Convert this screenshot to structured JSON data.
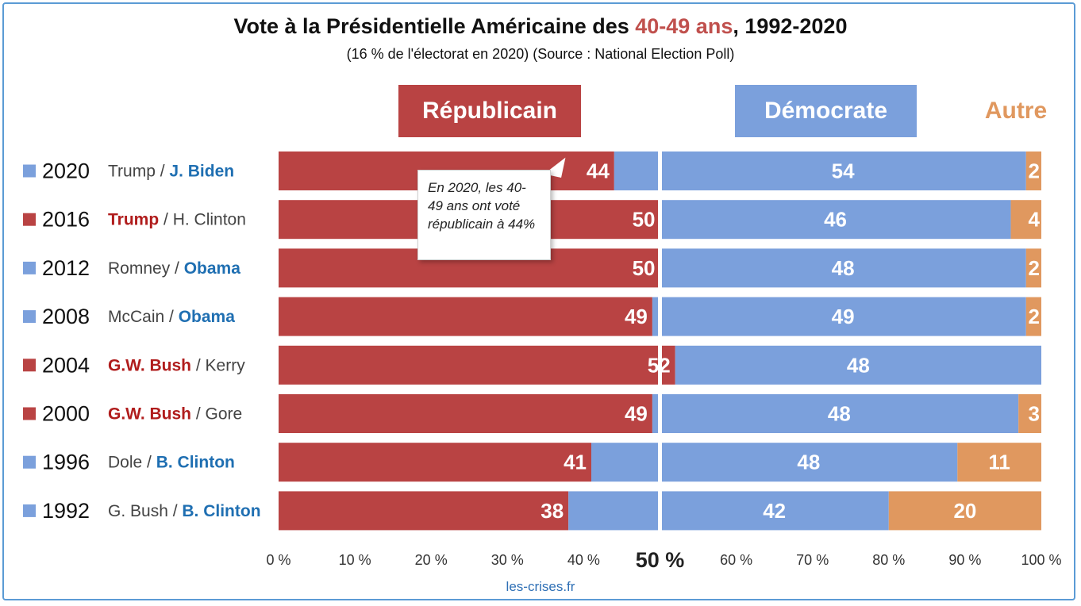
{
  "title": {
    "prefix": "Vote à la Présidentielle Américaine des ",
    "highlight": "40-49 ans",
    "suffix": ", 1992-2020"
  },
  "subtitle": "(16 % de l'électorat en 2020) (Source : National Election Poll)",
  "headers": {
    "republican": "Républicain",
    "democrat": "Démocrate",
    "other": "Autre"
  },
  "annotation": "En 2020, les 40-49 ans ont voté républicain à 44%",
  "footer": "les-crises.fr",
  "colors": {
    "republican": "#b94343",
    "democrat": "#7ba0dc",
    "other": "#e0985f",
    "rep_candidate_text": "#b01c1c",
    "dem_candidate_text": "#1f6fb2",
    "loser_text": "#444444"
  },
  "chart_data": {
    "type": "bar",
    "orientation": "horizontal-stacked-100",
    "x_ticks": [
      "0 %",
      "10 %",
      "20 %",
      "30 %",
      "40 %",
      "50 %",
      "60 %",
      "70 %",
      "80 %",
      "90 %",
      "100 %"
    ],
    "xlim": [
      0,
      100
    ],
    "reference_line": 50,
    "series_names": [
      "Républicain",
      "Démocrate",
      "Autre"
    ],
    "rows": [
      {
        "year": "2020",
        "rep_candidate": "Trump",
        "dem_candidate": "J. Biden",
        "winner": "dem",
        "republican": 44,
        "democrat": 54,
        "other": 2
      },
      {
        "year": "2016",
        "rep_candidate": "Trump",
        "dem_candidate": "H. Clinton",
        "winner": "rep",
        "republican": 50,
        "democrat": 46,
        "other": 4
      },
      {
        "year": "2012",
        "rep_candidate": "Romney",
        "dem_candidate": "Obama",
        "winner": "dem",
        "republican": 50,
        "democrat": 48,
        "other": 2
      },
      {
        "year": "2008",
        "rep_candidate": "McCain",
        "dem_candidate": "Obama",
        "winner": "dem",
        "republican": 49,
        "democrat": 49,
        "other": 2
      },
      {
        "year": "2004",
        "rep_candidate": "G.W. Bush",
        "dem_candidate": "Kerry",
        "winner": "rep",
        "republican": 52,
        "democrat": 48,
        "other": 0
      },
      {
        "year": "2000",
        "rep_candidate": "G.W. Bush",
        "dem_candidate": "Gore",
        "winner": "rep",
        "republican": 49,
        "democrat": 48,
        "other": 3
      },
      {
        "year": "1996",
        "rep_candidate": "Dole",
        "dem_candidate": "B. Clinton",
        "winner": "dem",
        "republican": 41,
        "democrat": 48,
        "other": 11
      },
      {
        "year": "1992",
        "rep_candidate": "G. Bush",
        "dem_candidate": "B. Clinton",
        "winner": "dem",
        "republican": 38,
        "democrat": 42,
        "other": 20
      }
    ]
  }
}
